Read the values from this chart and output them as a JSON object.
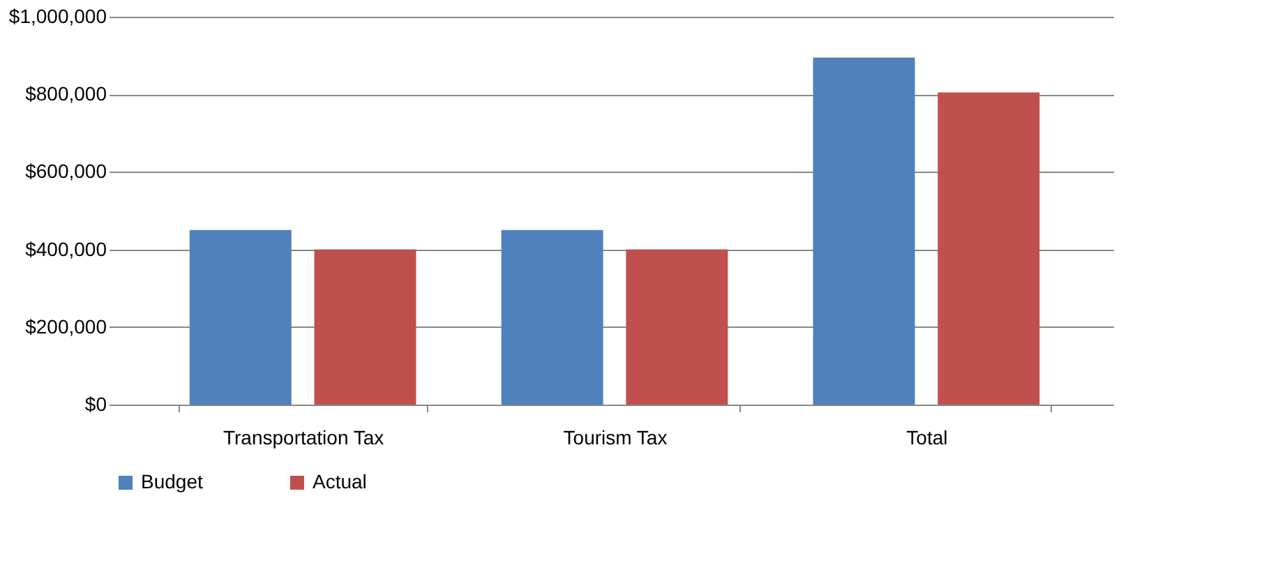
{
  "chart_data": {
    "type": "bar",
    "categories": [
      "Transportation Tax",
      "Tourism Tax",
      "Total"
    ],
    "series": [
      {
        "name": "Budget",
        "color": "#4f81bd",
        "values": [
          450000,
          450000,
          895000
        ]
      },
      {
        "name": "Actual",
        "color": "#c0504d",
        "values": [
          400000,
          400000,
          805000
        ]
      }
    ],
    "ylim": [
      0,
      1000000
    ],
    "yticks": [
      {
        "value": 0,
        "label": "$0"
      },
      {
        "value": 200000,
        "label": "$200,000"
      },
      {
        "value": 400000,
        "label": "$400,000"
      },
      {
        "value": 600000,
        "label": "$600,000"
      },
      {
        "value": 800000,
        "label": "$800,000"
      },
      {
        "value": 1000000,
        "label": "$1,000,000"
      }
    ],
    "grid": "y",
    "legend": "bottom"
  }
}
